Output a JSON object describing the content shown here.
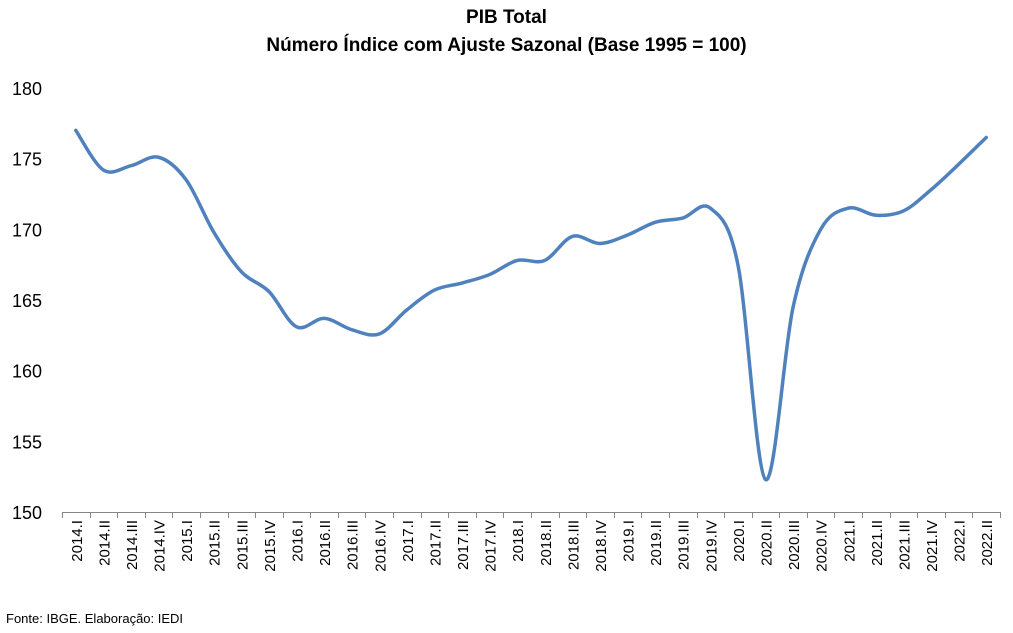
{
  "chart_data": {
    "type": "line",
    "title": "PIB Total",
    "subtitle": "Número Índice com Ajuste Sazonal (Base 1995 = 100)",
    "xlabel": "",
    "ylabel": "",
    "ylim": [
      150,
      180
    ],
    "yticks": [
      150,
      155,
      160,
      165,
      170,
      175,
      180
    ],
    "grid": false,
    "legend": "none",
    "line_color": "#4F81BD",
    "categories": [
      "2014.I",
      "2014.II",
      "2014.III",
      "2014.IV",
      "2015.I",
      "2015.II",
      "2015.III",
      "2015.IV",
      "2016.I",
      "2016.II",
      "2016.III",
      "2016.IV",
      "2017.I",
      "2017.II",
      "2017.III",
      "2017.IV",
      "2018.I",
      "2018.II",
      "2018.III",
      "2018.IV",
      "2019.I",
      "2019.II",
      "2019.III",
      "2019.IV",
      "2020.I",
      "2020.II",
      "2020.III",
      "2020.IV",
      "2021.I",
      "2021.II",
      "2021.III",
      "2021.IV",
      "2022.I",
      "2022.II"
    ],
    "series": [
      {
        "values": [
          177.0,
          174.2,
          174.5,
          175.1,
          173.5,
          169.8,
          167.0,
          165.6,
          163.1,
          163.7,
          162.9,
          162.6,
          164.3,
          165.7,
          166.2,
          166.8,
          167.8,
          167.8,
          169.5,
          169.0,
          169.6,
          170.5,
          170.8,
          171.5,
          167.5,
          152.3,
          164.5,
          170.0,
          171.5,
          171.0,
          171.3,
          172.8,
          174.6,
          176.5
        ]
      }
    ]
  },
  "footer": {
    "source": "Fonte: IBGE. Elaboração: IEDI"
  }
}
